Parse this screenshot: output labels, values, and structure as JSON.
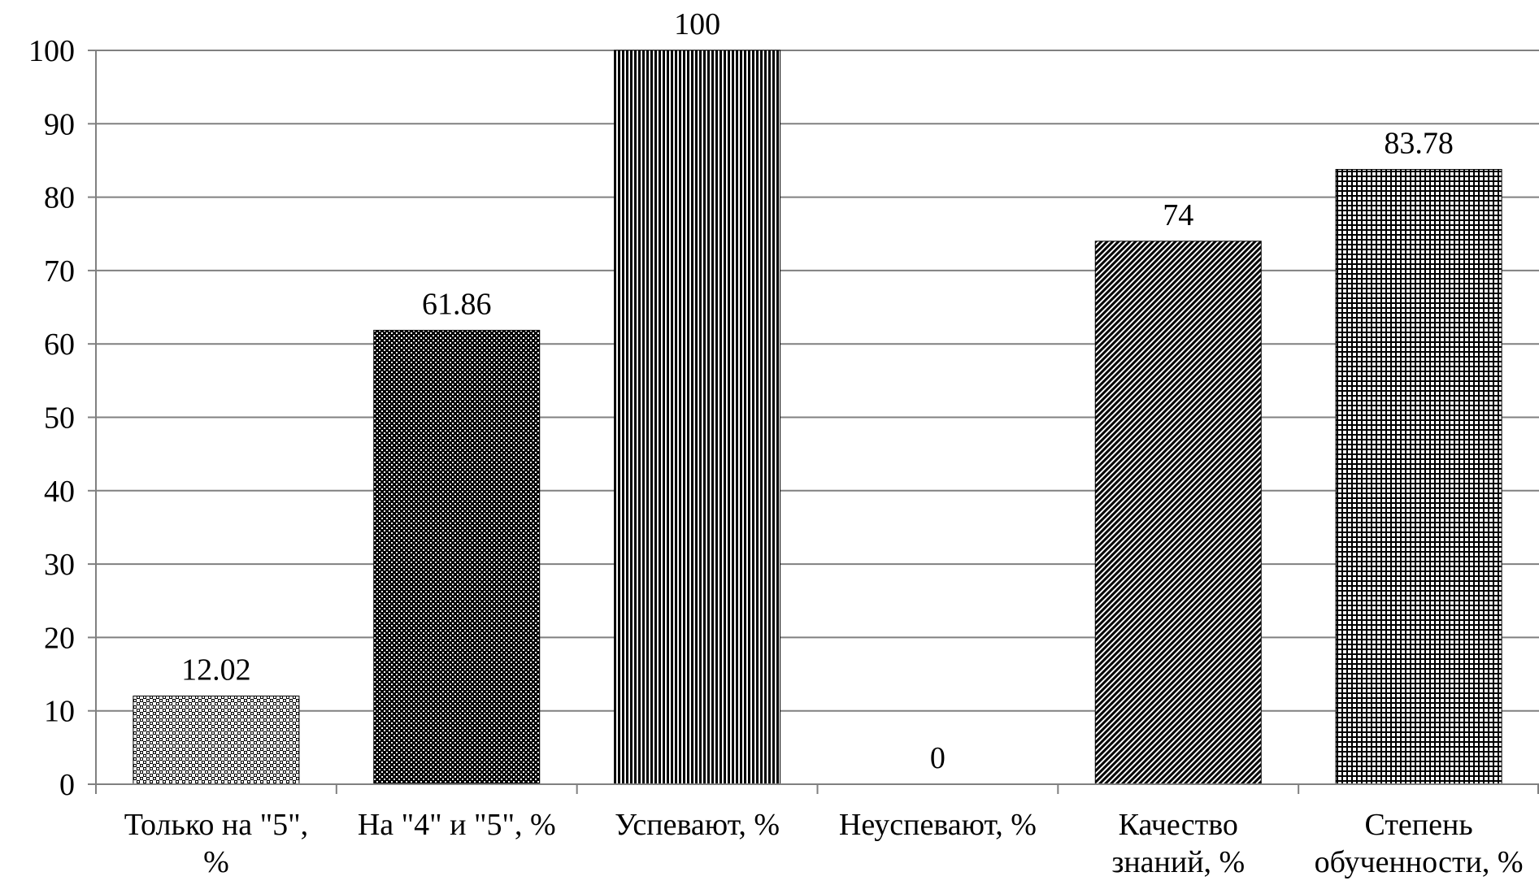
{
  "chart_data": {
    "type": "bar",
    "title": "",
    "xlabel": "",
    "ylabel": "",
    "ylim": [
      0,
      100
    ],
    "yticks": [
      0,
      10,
      20,
      30,
      40,
      50,
      60,
      70,
      80,
      90,
      100
    ],
    "grid": true,
    "legend": "none",
    "categories": [
      [
        "Только на \"5\",",
        "%"
      ],
      [
        "На \"4\" и \"5\", %"
      ],
      [
        "Успевают, %"
      ],
      [
        "Неуспевают, %"
      ],
      [
        "Качество",
        "знаний, %"
      ],
      [
        "Степень",
        "обученности, %"
      ]
    ],
    "values": [
      12.02,
      61.86,
      100,
      0,
      74,
      83.78
    ],
    "data_labels": [
      "12.02",
      "61.86",
      "100",
      "0",
      "74",
      "83.78"
    ],
    "patterns": [
      "small-checker",
      "dotted-grid",
      "vertical-lines",
      "none",
      "diagonal-hatch",
      "square-grid"
    ],
    "colors": {
      "bar_fill": "#000000",
      "background": "#ffffff",
      "grid": "#808080",
      "axis": "#808080"
    }
  }
}
